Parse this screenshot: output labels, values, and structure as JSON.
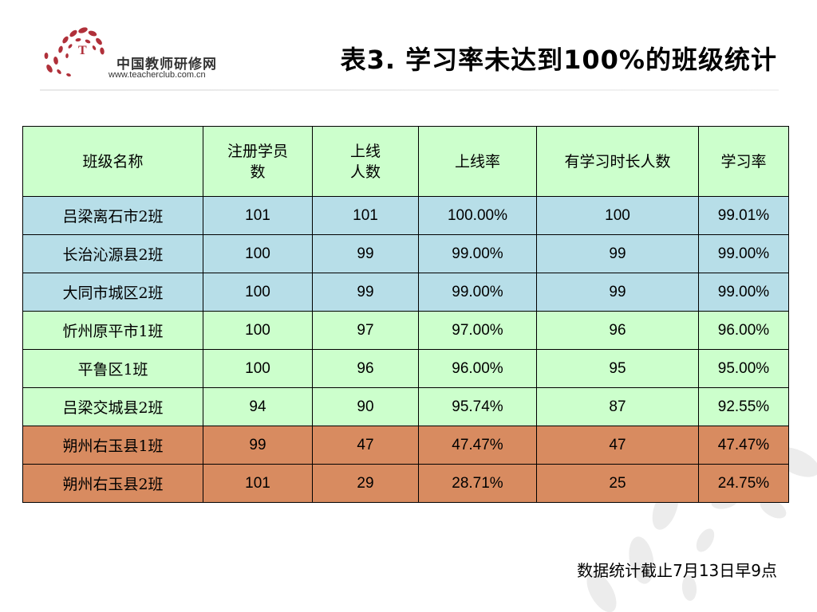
{
  "logo": {
    "name_cn": "中国教师研修网",
    "url": "www.teacherclub.com.cn"
  },
  "title": "表3. 学习率未达到100%的班级统计",
  "table": {
    "headers": [
      "班级名称",
      "注册学员数",
      "上线人数",
      "上线率",
      "有学习时长人数",
      "学习率"
    ],
    "rows": [
      {
        "name": "吕梁离石市2班",
        "registered": "101",
        "online": "101",
        "online_rate": "100.00%",
        "study_count": "100",
        "study_rate": "99.01%",
        "color": "#b7dee8"
      },
      {
        "name": "长治沁源县2班",
        "registered": "100",
        "online": "99",
        "online_rate": "99.00%",
        "study_count": "99",
        "study_rate": "99.00%",
        "color": "#b7dee8"
      },
      {
        "name": "大同市城区2班",
        "registered": "100",
        "online": "99",
        "online_rate": "99.00%",
        "study_count": "99",
        "study_rate": "99.00%",
        "color": "#b7dee8"
      },
      {
        "name": "忻州原平市1班",
        "registered": "100",
        "online": "97",
        "online_rate": "97.00%",
        "study_count": "96",
        "study_rate": "96.00%",
        "color": "#ccffcc"
      },
      {
        "name": "平鲁区1班",
        "registered": "100",
        "online": "96",
        "online_rate": "96.00%",
        "study_count": "95",
        "study_rate": "95.00%",
        "color": "#ccffcc"
      },
      {
        "name": "吕梁交城县2班",
        "registered": "94",
        "online": "90",
        "online_rate": "95.74%",
        "study_count": "87",
        "study_rate": "92.55%",
        "color": "#ccffcc"
      },
      {
        "name": "朔州右玉县1班",
        "registered": "99",
        "online": "47",
        "online_rate": "47.47%",
        "study_count": "47",
        "study_rate": "47.47%",
        "color": "#d88b60"
      },
      {
        "name": "朔州右玉县2班",
        "registered": "101",
        "online": "29",
        "online_rate": "28.71%",
        "study_count": "25",
        "study_rate": "24.75%",
        "color": "#d88b60"
      }
    ]
  },
  "footnote": "数据统计截止7月13日早9点",
  "colors": {
    "header_bg": "#ccffcc",
    "row_blue": "#b7dee8",
    "row_green": "#ccffcc",
    "row_orange": "#d88b60",
    "logo_red": "#b0303a"
  }
}
